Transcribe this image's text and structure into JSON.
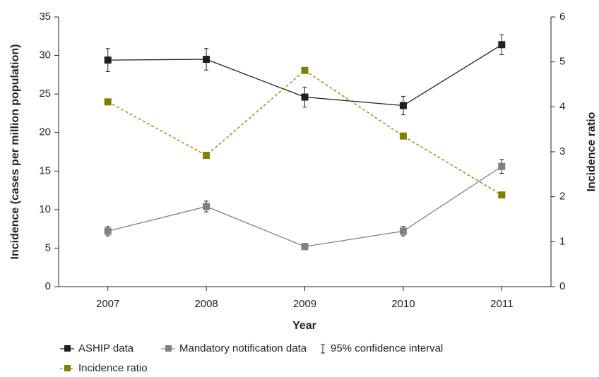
{
  "chart_data": {
    "type": "line",
    "xlabel": "Year",
    "ylabel": "Incidence (cases per million population)",
    "y2label": "Incidence ratio",
    "x": [
      2007,
      2008,
      2009,
      2010,
      2011
    ],
    "xlim": [
      2006.5,
      2011.5
    ],
    "xticks": [
      2007,
      2008,
      2009,
      2010,
      2011
    ],
    "ylim": [
      0,
      35
    ],
    "yticks": [
      0,
      5,
      10,
      15,
      20,
      25,
      30,
      35
    ],
    "y2lim": [
      0,
      6
    ],
    "y2ticks": [
      0,
      1,
      2,
      3,
      4,
      5,
      6
    ],
    "error_legend": "95% confidence interval",
    "series": [
      {
        "name": "ASHIP data",
        "color": "#231f20",
        "dashed": false,
        "values": [
          29.4,
          29.5,
          24.6,
          23.5,
          31.4
        ],
        "errors": [
          1.5,
          1.4,
          1.3,
          1.2,
          1.3
        ]
      },
      {
        "name": "Mandatory notification data",
        "color": "#808080",
        "dashed": false,
        "values": [
          7.2,
          10.4,
          5.2,
          7.2,
          15.6
        ],
        "errors": [
          0.6,
          0.7,
          0.4,
          0.6,
          0.9
        ]
      },
      {
        "name": "Incidence ratio",
        "color": "#808000",
        "dashed": true,
        "axis": "y2",
        "values": [
          4.11,
          2.92,
          4.81,
          3.35,
          2.04
        ]
      }
    ]
  }
}
